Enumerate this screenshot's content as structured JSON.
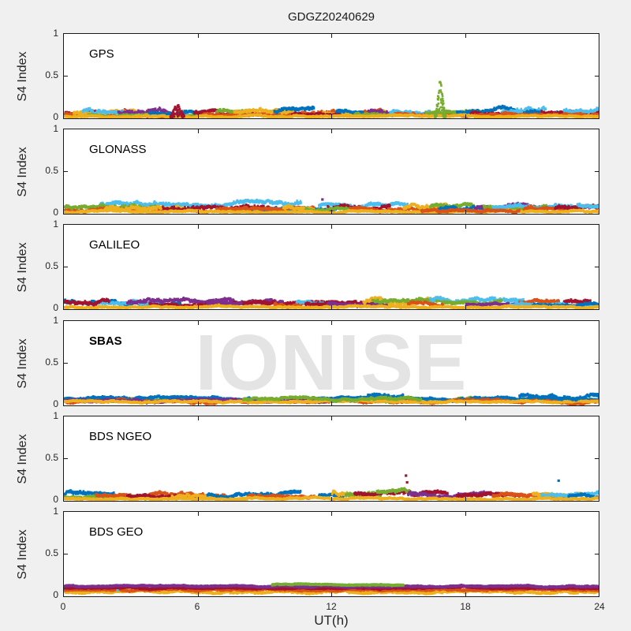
{
  "chart_data": {
    "type": "scatter",
    "title": "GDGZ20240629",
    "xlabel": "UT(h)",
    "ylabel": "S4 Index",
    "watermark": "IONISE",
    "xlim": [
      0,
      24
    ],
    "ylim": [
      0,
      1
    ],
    "xticks": [
      0,
      6,
      12,
      18,
      24
    ],
    "yticks": [
      0,
      0.5,
      1
    ],
    "xtick_labels": [
      "0",
      "6",
      "12",
      "18",
      "24"
    ],
    "ytick_labels_top_to_bottom": [
      "1",
      "0.5",
      "0"
    ],
    "grid": false,
    "legend": "none",
    "background_color": "#f0f0f0",
    "plot_background": "#ffffff",
    "watermark_color": "#e4e4e4",
    "palette": {
      "b": "#0072BD",
      "o": "#D95319",
      "y": "#EDB120",
      "p": "#7E2F8E",
      "g": "#77AC30",
      "c": "#4DBEEE",
      "r": "#A2142F"
    },
    "panels": [
      {
        "label": "GPS",
        "bold": false,
        "arcs": [
          [
            "r",
            0,
            2.8,
            0.07,
            0.05
          ],
          [
            "o",
            0,
            4.6,
            0.05,
            0.04
          ],
          [
            "y",
            0.4,
            3.2,
            0.08,
            0.05
          ],
          [
            "c",
            0.8,
            2.6,
            0.09,
            0.05
          ],
          [
            "p",
            2.4,
            4.6,
            0.08,
            0.05
          ],
          [
            "g",
            1.0,
            6.0,
            0.04,
            0.03
          ],
          [
            "b",
            3.8,
            6.4,
            0.07,
            0.04
          ],
          [
            "r",
            5.8,
            9.6,
            0.07,
            0.04
          ],
          [
            "g",
            6.8,
            8.4,
            0.09,
            0.04
          ],
          [
            "o",
            6.2,
            10.2,
            0.05,
            0.03
          ],
          [
            "y",
            7.6,
            10.4,
            0.08,
            0.05
          ],
          [
            "b",
            9.4,
            11.2,
            0.08,
            0.05
          ],
          [
            "o",
            10.6,
            14.2,
            0.08,
            0.05
          ],
          [
            "y",
            11.6,
            14.4,
            0.07,
            0.04
          ],
          [
            "r",
            10.2,
            12.4,
            0.05,
            0.03
          ],
          [
            "b",
            12.2,
            13.4,
            0.08,
            0.04
          ],
          [
            "p",
            13.6,
            14.8,
            0.08,
            0.05
          ],
          [
            "g",
            13.0,
            16.2,
            0.05,
            0.03
          ],
          [
            "c",
            14.6,
            16.4,
            0.08,
            0.04
          ],
          [
            "o",
            14.8,
            18.2,
            0.06,
            0.04
          ],
          [
            "g",
            16.2,
            18.6,
            0.08,
            0.04
          ],
          [
            "b",
            17.6,
            20.2,
            0.08,
            0.05
          ],
          [
            "r",
            18.2,
            21.2,
            0.06,
            0.04
          ],
          [
            "c",
            19.6,
            21.6,
            0.09,
            0.05
          ],
          [
            "b",
            20.6,
            23.2,
            0.07,
            0.04
          ],
          [
            "r",
            21.4,
            24,
            0.08,
            0.04
          ],
          [
            "c",
            22.4,
            24,
            0.09,
            0.05
          ],
          [
            "o",
            18.4,
            24,
            0.05,
            0.03
          ],
          [
            "y",
            0,
            24,
            0.03,
            0.02
          ]
        ],
        "spikes": [
          [
            "g",
            16.85,
            0.46,
            0.5
          ],
          [
            "r",
            5.05,
            0.17,
            0.8
          ]
        ],
        "dots": []
      },
      {
        "label": "GLONASS",
        "bold": false,
        "arcs": [
          [
            "c",
            1.6,
            10.6,
            0.13,
            0.05
          ],
          [
            "g",
            0,
            4.2,
            0.08,
            0.05
          ],
          [
            "o",
            0,
            6.4,
            0.05,
            0.04
          ],
          [
            "y",
            1.8,
            5.6,
            0.07,
            0.05
          ],
          [
            "r",
            4.4,
            9.2,
            0.08,
            0.05
          ],
          [
            "b",
            8.0,
            12.2,
            0.06,
            0.04
          ],
          [
            "o",
            6.8,
            11.2,
            0.07,
            0.04
          ],
          [
            "y",
            9.8,
            11.4,
            0.08,
            0.05
          ],
          [
            "c",
            11.4,
            15.4,
            0.11,
            0.04
          ],
          [
            "r",
            11.8,
            14.6,
            0.08,
            0.05
          ],
          [
            "g",
            10.8,
            13.6,
            0.05,
            0.03
          ],
          [
            "o",
            12.8,
            16.8,
            0.06,
            0.04
          ],
          [
            "y",
            15.2,
            17.2,
            0.09,
            0.05
          ],
          [
            "g",
            16.4,
            18.4,
            0.09,
            0.04
          ],
          [
            "b",
            16.8,
            20.8,
            0.06,
            0.04
          ],
          [
            "p",
            18.4,
            21.4,
            0.07,
            0.04
          ],
          [
            "g",
            18.8,
            22.2,
            0.09,
            0.04
          ],
          [
            "c",
            19.2,
            23.2,
            0.1,
            0.04
          ],
          [
            "o",
            20.6,
            24,
            0.06,
            0.04
          ],
          [
            "r",
            22.0,
            24,
            0.08,
            0.04
          ],
          [
            "c",
            23.0,
            24,
            0.11,
            0.04
          ],
          [
            "y",
            0,
            24,
            0.03,
            0.02
          ],
          [
            "o",
            16,
            20.4,
            0.04,
            0.03
          ]
        ],
        "spikes": [],
        "dots": [
          [
            "p",
            11.6,
            0.17
          ]
        ]
      },
      {
        "label": "GALILEO",
        "bold": false,
        "arcs": [
          [
            "b",
            0,
            0.5,
            0.12,
            0.06
          ],
          [
            "b",
            0.9,
            5.2,
            0.07,
            0.04
          ],
          [
            "c",
            1.4,
            4.2,
            0.08,
            0.04
          ],
          [
            "p",
            2.8,
            7.6,
            0.09,
            0.05
          ],
          [
            "r",
            3.8,
            9.2,
            0.07,
            0.04
          ],
          [
            "p",
            6.4,
            9.8,
            0.08,
            0.04
          ],
          [
            "r",
            8.0,
            12.2,
            0.07,
            0.04
          ],
          [
            "o",
            9.4,
            12.8,
            0.06,
            0.04
          ],
          [
            "c",
            10.4,
            11.6,
            0.09,
            0.04
          ],
          [
            "r",
            10.8,
            14.2,
            0.07,
            0.04
          ],
          [
            "p",
            11.8,
            14.6,
            0.07,
            0.04
          ],
          [
            "y",
            13.4,
            16.8,
            0.1,
            0.05
          ],
          [
            "g",
            13.8,
            17.2,
            0.1,
            0.04
          ],
          [
            "o",
            15.4,
            17.0,
            0.08,
            0.04
          ],
          [
            "c",
            16.4,
            20.6,
            0.12,
            0.05
          ],
          [
            "g",
            17.0,
            19.6,
            0.09,
            0.04
          ],
          [
            "p",
            18.0,
            20.2,
            0.06,
            0.03
          ],
          [
            "o",
            20.4,
            22.2,
            0.09,
            0.04
          ],
          [
            "r",
            22.4,
            23.6,
            0.09,
            0.04
          ],
          [
            "c",
            20.0,
            24,
            0.06,
            0.03
          ],
          [
            "b",
            21.0,
            24,
            0.05,
            0.03
          ],
          [
            "y",
            0,
            24,
            0.03,
            0.02
          ],
          [
            "r",
            0,
            2.0,
            0.09,
            0.04
          ]
        ],
        "spikes": [],
        "dots": []
      },
      {
        "label": "SBAS",
        "bold": true,
        "arcs": [
          [
            "g",
            0,
            24,
            0.07,
            0.035
          ],
          [
            "b",
            0,
            24,
            0.09,
            0.03
          ],
          [
            "o",
            0,
            24,
            0.055,
            0.03
          ],
          [
            "p",
            0,
            12,
            0.06,
            0.03
          ],
          [
            "y",
            0,
            24,
            0.05,
            0.02
          ],
          [
            "b",
            13.6,
            15.2,
            0.12,
            0.04
          ],
          [
            "b",
            20.4,
            24,
            0.11,
            0.04
          ],
          [
            "g",
            8,
            16,
            0.08,
            0.03
          ]
        ],
        "spikes": [],
        "dots": []
      },
      {
        "label": "BDS NGEO",
        "bold": false,
        "arcs": [
          [
            "b",
            0,
            2.2,
            0.09,
            0.05
          ],
          [
            "g",
            0,
            3.0,
            0.05,
            0.03
          ],
          [
            "o",
            1.4,
            7.2,
            0.07,
            0.04
          ],
          [
            "r",
            2.8,
            6.2,
            0.06,
            0.04
          ],
          [
            "y",
            4.8,
            8.2,
            0.06,
            0.04
          ],
          [
            "b",
            6.4,
            10.6,
            0.07,
            0.04
          ],
          [
            "o",
            8.2,
            11.2,
            0.06,
            0.04
          ],
          [
            "b",
            11.4,
            13.6,
            0.06,
            0.04
          ],
          [
            "y",
            12.0,
            13.8,
            0.09,
            0.05
          ],
          [
            "g",
            12.6,
            14.2,
            0.08,
            0.04
          ],
          [
            "r",
            13.0,
            17.2,
            0.09,
            0.05
          ],
          [
            "g",
            14.0,
            15.6,
            0.11,
            0.04
          ],
          [
            "p",
            15.4,
            19.6,
            0.08,
            0.05
          ],
          [
            "r",
            17.6,
            20.6,
            0.07,
            0.04
          ],
          [
            "o",
            19.2,
            22.6,
            0.06,
            0.04
          ],
          [
            "y",
            21.0,
            23.2,
            0.08,
            0.04
          ],
          [
            "c",
            21.4,
            24,
            0.08,
            0.04
          ],
          [
            "b",
            22.6,
            24,
            0.06,
            0.03
          ],
          [
            "y",
            0,
            24,
            0.03,
            0.02
          ]
        ],
        "spikes": [],
        "dots": [
          [
            "r",
            15.35,
            0.3
          ],
          [
            "r",
            15.4,
            0.22
          ],
          [
            "b",
            22.2,
            0.24
          ]
        ]
      },
      {
        "label": "BDS GEO",
        "bold": false,
        "arcs": [
          [
            "y",
            0,
            24,
            0.055,
            0.025
          ],
          [
            "o",
            0,
            24,
            0.082,
            0.02
          ],
          [
            "r",
            0,
            24,
            0.102,
            0.015
          ],
          [
            "p",
            0,
            24,
            0.124,
            0.015
          ],
          [
            "g",
            9.3,
            15.2,
            0.142,
            0.015
          ]
        ],
        "spikes": [],
        "dots": [
          [
            "c",
            2.4,
            0.07
          ]
        ]
      }
    ]
  }
}
